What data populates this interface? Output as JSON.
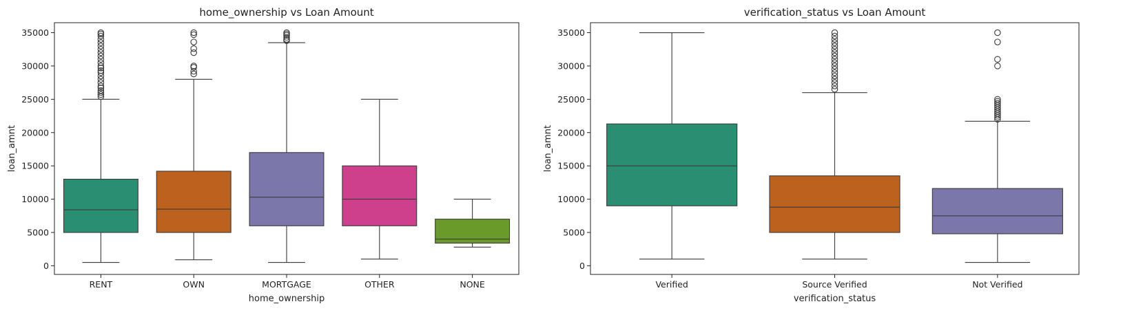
{
  "chart_data": [
    {
      "type": "box",
      "title": "home_ownership vs Loan Amount",
      "xlabel": "home_ownership",
      "ylabel": "loan_amnt",
      "ylim": [
        -1300,
        36500
      ],
      "yticks": [
        0,
        5000,
        10000,
        15000,
        20000,
        25000,
        30000,
        35000
      ],
      "grid": false,
      "categories": [
        "RENT",
        "OWN",
        "MORTGAGE",
        "OTHER",
        "NONE"
      ],
      "colors": [
        "#2a8f72",
        "#bd621e",
        "#7b77ab",
        "#ce408c",
        "#6a9a2a"
      ],
      "boxes": [
        {
          "whislo": 500,
          "q1": 5000,
          "med": 8400,
          "q3": 13000,
          "whishi": 25000,
          "fliers": [
            25400,
            25700,
            26000,
            26300,
            26700,
            27000,
            27500,
            28000,
            28500,
            29000,
            29300,
            29700,
            30000,
            30500,
            31000,
            31500,
            32000,
            32500,
            33000,
            33500,
            34000,
            34500,
            34800,
            35000
          ]
        },
        {
          "whislo": 900,
          "q1": 5000,
          "med": 8500,
          "q3": 14200,
          "whishi": 28000,
          "fliers": [
            28800,
            29200,
            29800,
            30000,
            32000,
            32600,
            33600,
            34700,
            35000
          ]
        },
        {
          "whislo": 500,
          "q1": 6000,
          "med": 10300,
          "q3": 17000,
          "whishi": 33500,
          "fliers": [
            33800,
            34000,
            34300,
            34600,
            34800,
            35000
          ]
        },
        {
          "whislo": 1000,
          "q1": 6000,
          "med": 10000,
          "q3": 15000,
          "whishi": 25000,
          "fliers": []
        },
        {
          "whislo": 2800,
          "q1": 3400,
          "med": 4000,
          "q3": 7000,
          "whishi": 10000,
          "fliers": []
        }
      ]
    },
    {
      "type": "box",
      "title": "verification_status vs Loan Amount",
      "xlabel": "verification_status",
      "ylabel": "loan_amnt",
      "ylim": [
        -1300,
        36500
      ],
      "yticks": [
        0,
        5000,
        10000,
        15000,
        20000,
        25000,
        30000,
        35000
      ],
      "grid": false,
      "categories": [
        "Verified",
        "Source Verified",
        "Not Verified"
      ],
      "colors": [
        "#2a8f72",
        "#bd621e",
        "#7b77ab"
      ],
      "boxes": [
        {
          "whislo": 1000,
          "q1": 9000,
          "med": 15000,
          "q3": 21300,
          "whishi": 35000,
          "fliers": []
        },
        {
          "whislo": 1000,
          "q1": 5000,
          "med": 8800,
          "q3": 13500,
          "whishi": 26000,
          "fliers": [
            26500,
            27000,
            27500,
            28000,
            28500,
            29000,
            29500,
            30000,
            30500,
            31000,
            31500,
            32000,
            32500,
            33000,
            33500,
            34000,
            34500,
            35000
          ]
        },
        {
          "whislo": 500,
          "q1": 4800,
          "med": 7500,
          "q3": 11600,
          "whishi": 21700,
          "fliers": [
            22000,
            22300,
            22600,
            22900,
            23200,
            23500,
            23800,
            24100,
            24400,
            24700,
            25000,
            30000,
            31000,
            33600,
            35000
          ]
        }
      ]
    }
  ]
}
